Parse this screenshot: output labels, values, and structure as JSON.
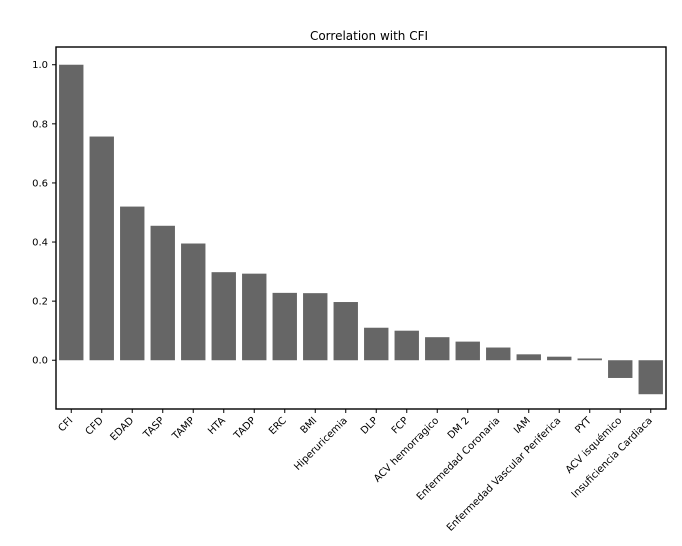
{
  "chart_data": {
    "type": "bar",
    "title": "Correlation with CFI",
    "xlabel": "",
    "ylabel": "",
    "categories": [
      "CFI",
      "CFD",
      "EDAD",
      "TASP",
      "TAMP",
      "HTA",
      "TADP",
      "ERC",
      "BMI",
      "Hiperuricemia",
      "DLP",
      "FCP",
      "ACV hemorragico",
      "DM 2",
      "Enfermedad Coronaria",
      "IAM",
      "Enfermedad Vascular Periferica",
      "PYT",
      "ACV isquémico",
      "Insuficiencia Cardiaca"
    ],
    "values": [
      1.0,
      0.757,
      0.52,
      0.455,
      0.395,
      0.298,
      0.293,
      0.228,
      0.227,
      0.197,
      0.11,
      0.1,
      0.078,
      0.063,
      0.043,
      0.02,
      0.012,
      0.006,
      -0.06,
      -0.115
    ],
    "ylim": [
      -0.165,
      1.06
    ],
    "yticks": [
      "0.0",
      "0.2",
      "0.4",
      "0.6",
      "0.8",
      "1.0"
    ],
    "ytick_values": [
      0.0,
      0.2,
      0.4,
      0.6,
      0.8,
      1.0
    ],
    "bar_color": "#666666",
    "grid": false,
    "legend": "none"
  }
}
